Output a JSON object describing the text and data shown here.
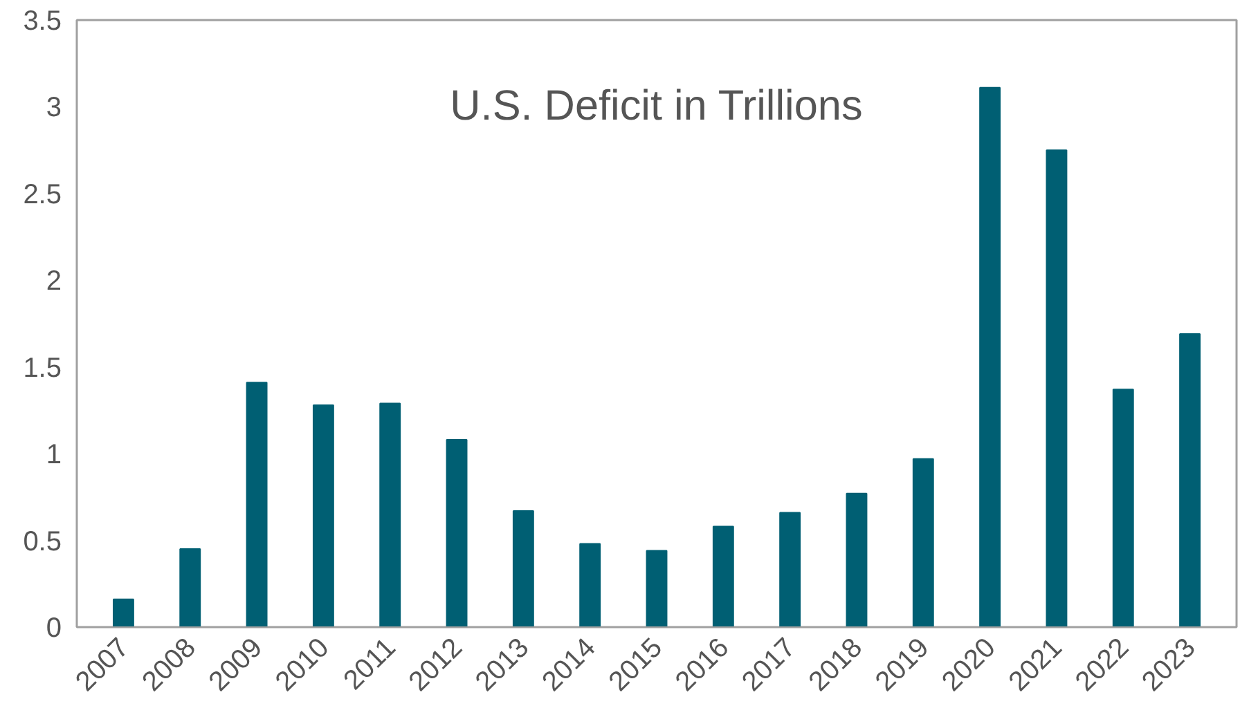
{
  "chart_data": {
    "type": "bar",
    "title": "U.S. Deficit in Trillions",
    "categories": [
      "2007",
      "2008",
      "2009",
      "2010",
      "2011",
      "2012",
      "2013",
      "2014",
      "2015",
      "2016",
      "2017",
      "2018",
      "2019",
      "2020",
      "2021",
      "2022",
      "2023"
    ],
    "values": [
      0.16,
      0.45,
      1.41,
      1.28,
      1.29,
      1.08,
      0.67,
      0.48,
      0.44,
      0.58,
      0.66,
      0.77,
      0.97,
      3.11,
      2.75,
      1.37,
      1.69
    ],
    "color": "#005f73",
    "ylim": [
      0,
      3.5
    ],
    "yticks": [
      0,
      0.5,
      1,
      1.5,
      2,
      2.5,
      3,
      3.5
    ],
    "grid": false
  }
}
